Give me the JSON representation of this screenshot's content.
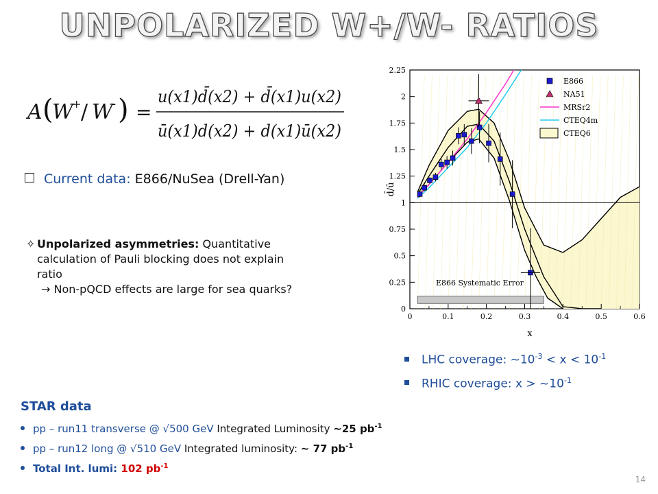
{
  "title": "UNPOLARIZED W+/W- RATIOS",
  "formula": {
    "lhs_A": "A",
    "lhs_W1": "W",
    "lhs_plus": "+",
    "lhs_slash": "/",
    "lhs_W2": "W",
    "lhs_minus": "-",
    "eq": "=",
    "numerator": "u(x1)d̄(x2) + d̄(x1)u(x2)",
    "denominator": "ū(x1)d(x2) + d(x1)ū(x2)"
  },
  "current_data": {
    "label": "Current data:",
    "value": "E866/NuSea (Drell-Yan)"
  },
  "unpolarized": {
    "bold": "Unpolarized asymmetries:",
    "text1": " Quantitative",
    "text2": "calculation of Pauli blocking does not explain",
    "text3": "ratio",
    "arrow_text": "→ Non-pQCD effects are large for sea quarks?"
  },
  "coverage": {
    "lhc": {
      "prefix": "LHC coverage: ~10",
      "exp1": "-3",
      "mid": " < x < 10",
      "exp2": "-1"
    },
    "rhic": {
      "prefix": "RHIC coverage: x > ~10",
      "exp1": "-1"
    }
  },
  "star": {
    "title": "STAR data",
    "item1": {
      "blue": "pp – run11 transverse @  √500 GeV",
      "rest": " Integrated Luminosity ",
      "bold": "~25 pb",
      "sup": "-1"
    },
    "item2": {
      "blue": "pp – run12 long @  √510 GeV",
      "rest": " Integrated luminosity: ",
      "bold": "~ 77 pb",
      "sup": "-1"
    },
    "item3": {
      "blue": "Total Int. lumi:",
      "red": " 102 pb",
      "sup": "-1"
    }
  },
  "page_number": "14",
  "chart_data": {
    "type": "scatter",
    "title": "",
    "xlabel": "x",
    "ylabel": "d̄/ū",
    "xlim": [
      0,
      0.6
    ],
    "ylim": [
      0,
      2.25
    ],
    "xticks": [
      "0",
      "0.1",
      "0.2",
      "0.3",
      "0.4",
      "0.5",
      "0.6"
    ],
    "yticks": [
      "0",
      "0.25",
      "0.5",
      "0.75",
      "1",
      "1.25",
      "1.5",
      "1.75",
      "2",
      "2.25"
    ],
    "annotation": "E866 Systematic Error",
    "legend_position": "top-right",
    "legend": [
      "E866",
      "NA51",
      "MRSr2",
      "CTEQ4m",
      "CTEQ6"
    ],
    "series": [
      {
        "name": "E866",
        "marker": "square",
        "color": "#1a1acc",
        "x": [
          0.026,
          0.038,
          0.052,
          0.067,
          0.082,
          0.097,
          0.112,
          0.127,
          0.142,
          0.161,
          0.182,
          0.206,
          0.236,
          0.268,
          0.315
        ],
        "y": [
          1.08,
          1.14,
          1.21,
          1.24,
          1.36,
          1.38,
          1.42,
          1.63,
          1.64,
          1.58,
          1.71,
          1.56,
          1.41,
          1.08,
          0.34
        ],
        "err": [
          0.03,
          0.03,
          0.03,
          0.04,
          0.05,
          0.06,
          0.07,
          0.08,
          0.1,
          0.12,
          0.15,
          0.18,
          0.25,
          0.32,
          0.42
        ]
      },
      {
        "name": "NA51",
        "marker": "triangle",
        "color": "#c03070",
        "x": [
          0.18
        ],
        "y": [
          1.96
        ],
        "err": [
          0.25
        ]
      },
      {
        "name": "MRSr2",
        "type": "line",
        "color": "#ff33cc",
        "x": [
          0.02,
          0.05,
          0.1,
          0.15,
          0.2,
          0.25,
          0.28
        ],
        "y": [
          1.05,
          1.17,
          1.38,
          1.6,
          1.85,
          2.12,
          2.3
        ]
      },
      {
        "name": "CTEQ4m",
        "type": "line",
        "color": "#22ccee",
        "x": [
          0.02,
          0.05,
          0.1,
          0.15,
          0.2,
          0.25,
          0.3
        ],
        "y": [
          1.04,
          1.14,
          1.33,
          1.52,
          1.75,
          2.02,
          2.3
        ]
      },
      {
        "name": "CTEQ6 upper",
        "type": "line",
        "color": "#000000",
        "x": [
          0.02,
          0.05,
          0.1,
          0.15,
          0.18,
          0.22,
          0.26,
          0.3,
          0.35,
          0.4,
          0.45,
          0.5,
          0.55,
          0.6
        ],
        "y": [
          1.1,
          1.35,
          1.68,
          1.86,
          1.88,
          1.75,
          1.4,
          0.95,
          0.6,
          0.53,
          0.65,
          0.85,
          1.05,
          1.15
        ]
      },
      {
        "name": "CTEQ6 lower",
        "type": "line",
        "color": "#000000",
        "x": [
          0.02,
          0.05,
          0.1,
          0.15,
          0.18,
          0.22,
          0.26,
          0.3,
          0.33,
          0.36,
          0.4
        ],
        "y": [
          1.05,
          1.17,
          1.38,
          1.57,
          1.6,
          1.42,
          1.02,
          0.55,
          0.3,
          0.1,
          0
        ]
      },
      {
        "name": "CTEQ6 central",
        "type": "line",
        "color": "#000000",
        "x": [
          0.02,
          0.05,
          0.1,
          0.15,
          0.18,
          0.22,
          0.26,
          0.3,
          0.35,
          0.4,
          0.45,
          0.5
        ],
        "y": [
          1.08,
          1.25,
          1.52,
          1.72,
          1.74,
          1.58,
          1.2,
          0.75,
          0.3,
          0.02,
          0,
          0
        ]
      },
      {
        "name": "E866 Systematic Error",
        "type": "band",
        "color": "#777777",
        "x": [
          0.02,
          0.35
        ],
        "y_low": [
          0.05,
          0.05
        ],
        "y_high": [
          0.12,
          0.12
        ]
      }
    ]
  }
}
